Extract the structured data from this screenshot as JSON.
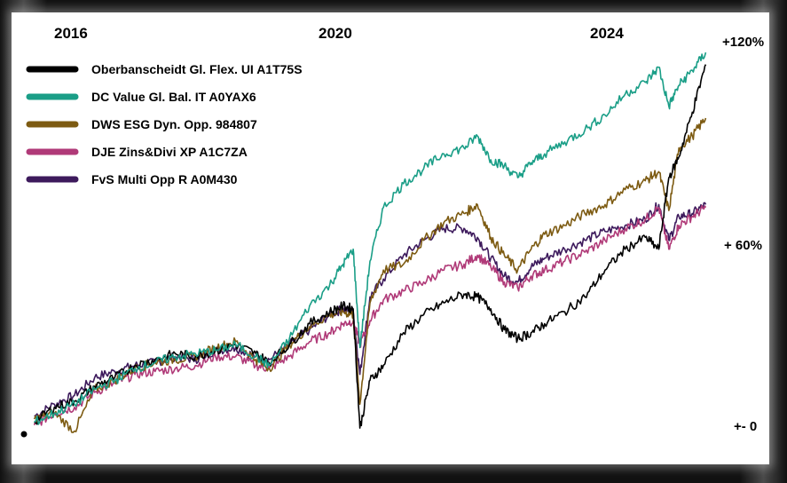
{
  "chart_data": {
    "type": "line",
    "title": "",
    "xlabel": "",
    "ylabel": "",
    "x_ticks": [
      "2016",
      "2020",
      "2024"
    ],
    "y_ticks": [
      "+- 0",
      "+ 60%",
      "+120%"
    ],
    "xlim": [
      2015.3,
      2025.5
    ],
    "ylim": [
      -10,
      130
    ],
    "legend_position": "top-left",
    "grid": false,
    "x": [
      2015.4,
      2015.7,
      2016.0,
      2016.3,
      2016.6,
      2016.9,
      2017.2,
      2017.5,
      2017.8,
      2018.1,
      2018.4,
      2018.7,
      2018.9,
      2019.2,
      2019.5,
      2019.8,
      2020.0,
      2020.15,
      2020.25,
      2020.4,
      2020.6,
      2020.9,
      2021.2,
      2021.5,
      2021.8,
      2022.0,
      2022.2,
      2022.4,
      2022.6,
      2022.8,
      2023.0,
      2023.3,
      2023.6,
      2023.9,
      2024.2,
      2024.5,
      2024.7,
      2024.85,
      2025.0,
      2025.2,
      2025.4
    ],
    "series": [
      {
        "name": "Oberbanscheidt Gl. Flex. UI A1T75S",
        "color": "#000000",
        "values": [
          0,
          5,
          7,
          12,
          15,
          19,
          21,
          23,
          22,
          24,
          26,
          23,
          20,
          26,
          33,
          37,
          39,
          38,
          -2,
          14,
          19,
          30,
          36,
          40,
          43,
          42,
          38,
          31,
          28,
          30,
          33,
          37,
          42,
          51,
          58,
          62,
          58,
          82,
          89,
          104,
          120
        ]
      },
      {
        "name": "DC Value Gl. Bal. IT A0YAX6",
        "color": "#1a9e87",
        "values": [
          0,
          3,
          6,
          11,
          14,
          18,
          20,
          22,
          23,
          24,
          26,
          22,
          19,
          28,
          39,
          46,
          53,
          58,
          25,
          54,
          72,
          80,
          85,
          90,
          92,
          96,
          88,
          86,
          82,
          87,
          90,
          94,
          98,
          103,
          110,
          114,
          119,
          106,
          113,
          118,
          124
        ]
      },
      {
        "name": "DWS ESG Dyn. Opp. 984807",
        "color": "#7d5b12",
        "values": [
          1,
          3,
          -3,
          11,
          14,
          18,
          20,
          21,
          22,
          25,
          27,
          21,
          18,
          26,
          32,
          36,
          37,
          36,
          6,
          40,
          51,
          53,
          61,
          67,
          70,
          73,
          62,
          56,
          51,
          58,
          63,
          66,
          70,
          73,
          78,
          81,
          84,
          71,
          92,
          96,
          102
        ]
      },
      {
        "name": "DJE Zins&Divi XP A1C7ZA",
        "color": "#b03a78",
        "values": [
          -1,
          3,
          5,
          10,
          13,
          16,
          17,
          18,
          19,
          22,
          22,
          19,
          18,
          22,
          27,
          30,
          33,
          34,
          26,
          34,
          41,
          44,
          47,
          51,
          53,
          56,
          52,
          47,
          45,
          49,
          51,
          54,
          57,
          61,
          65,
          68,
          72,
          58,
          66,
          69,
          72
        ]
      },
      {
        "name": "FvS Multi Opp R A0M430",
        "color": "#3d1a5c",
        "values": [
          2,
          6,
          9,
          15,
          17,
          19,
          20,
          22,
          21,
          24,
          25,
          22,
          21,
          26,
          31,
          36,
          38,
          37,
          16,
          42,
          48,
          56,
          61,
          65,
          65,
          62,
          55,
          49,
          47,
          52,
          55,
          58,
          61,
          64,
          66,
          68,
          73,
          61,
          69,
          70,
          73
        ]
      }
    ]
  }
}
